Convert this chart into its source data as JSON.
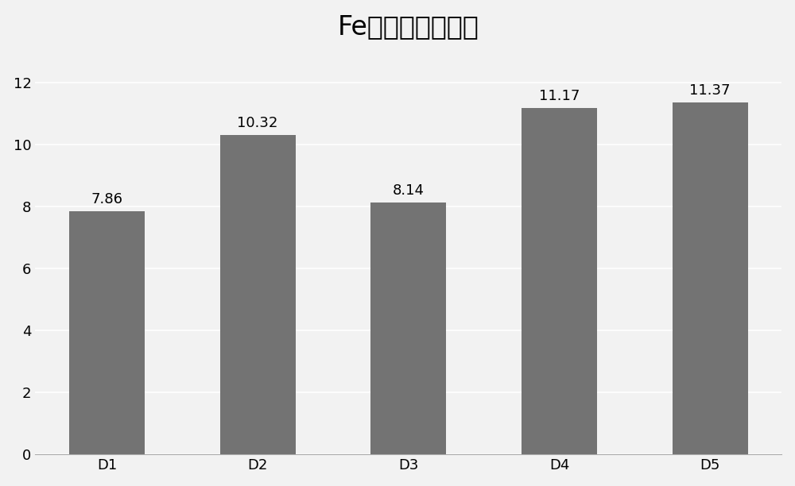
{
  "categories": [
    "D1",
    "D2",
    "D3",
    "D4",
    "D5"
  ],
  "values": [
    7.86,
    10.32,
    8.14,
    11.17,
    11.37
  ],
  "bar_color": "#737373",
  "title": "Fe元素含量变化图",
  "title_fontsize": 24,
  "ylim": [
    0,
    13
  ],
  "yticks": [
    0,
    2,
    4,
    6,
    8,
    10,
    12
  ],
  "tick_fontsize": 13,
  "bar_width": 0.5,
  "background_color": "#f2f2f2",
  "plot_bg_color": "#f2f2f2",
  "grid_color": "#ffffff",
  "annotation_fontsize": 13
}
